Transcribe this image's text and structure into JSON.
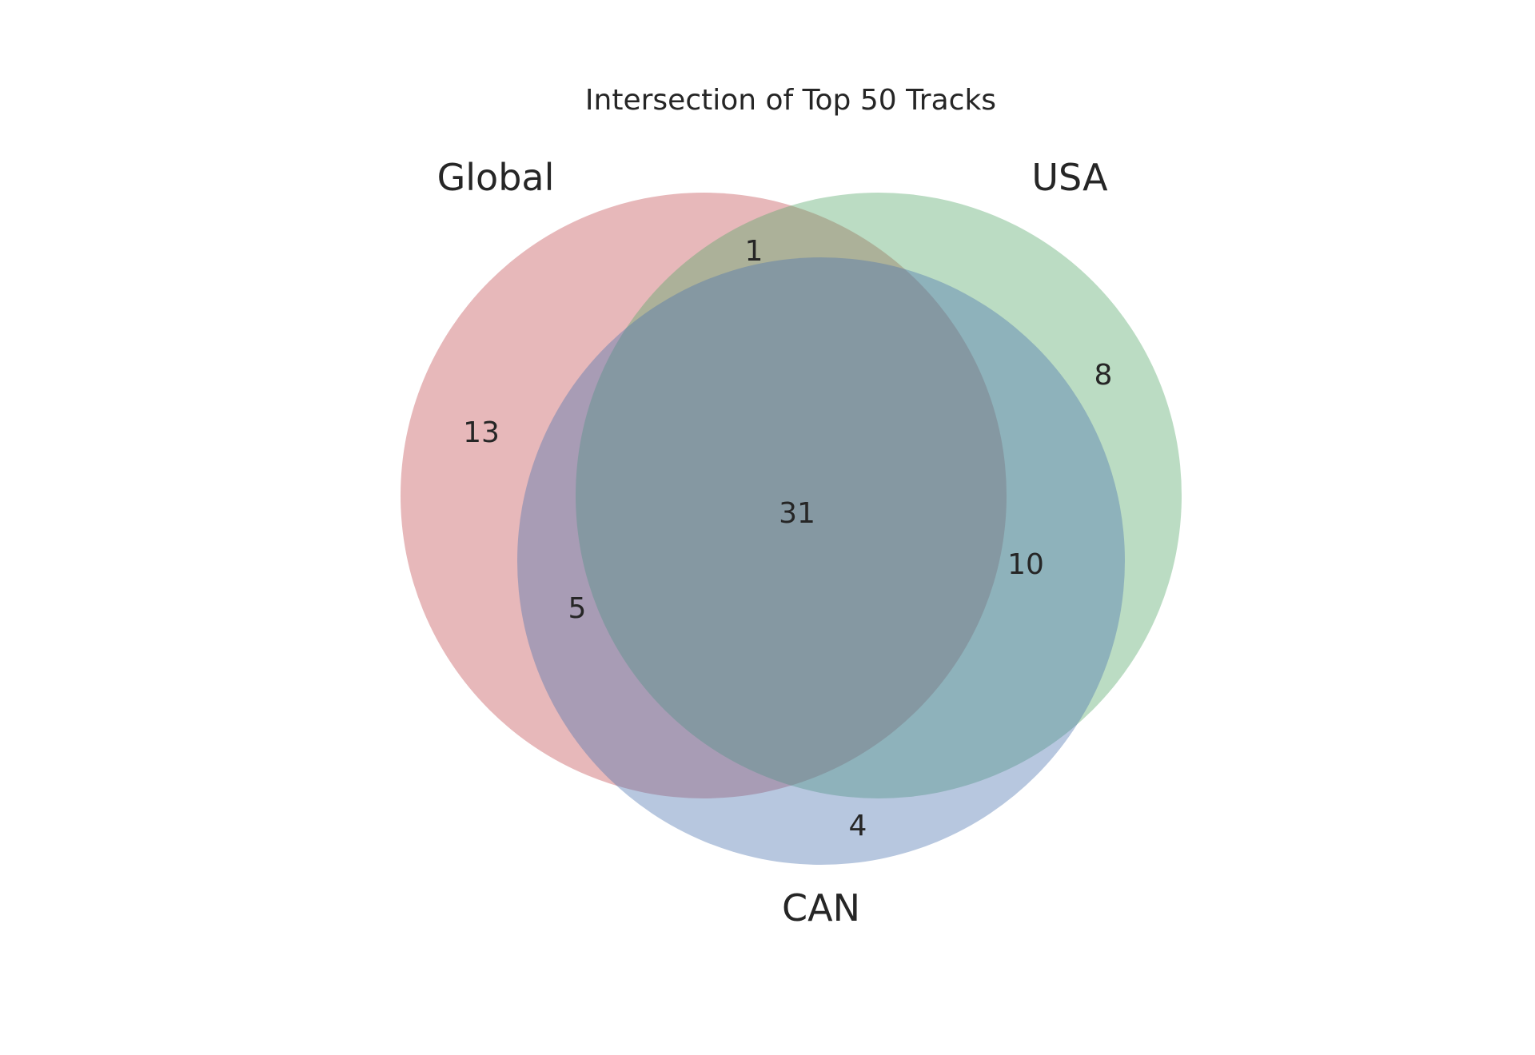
{
  "chart_data": {
    "type": "venn",
    "title": "Intersection of Top 50 Tracks",
    "sets": [
      {
        "name": "Global",
        "color": "#c44e52"
      },
      {
        "name": "USA",
        "color": "#55a868"
      },
      {
        "name": "CAN",
        "color": "#4c72b0"
      }
    ],
    "regions": [
      {
        "sets": [
          "Global"
        ],
        "value": 13
      },
      {
        "sets": [
          "USA"
        ],
        "value": 8
      },
      {
        "sets": [
          "CAN"
        ],
        "value": 4
      },
      {
        "sets": [
          "Global",
          "USA"
        ],
        "value": 1
      },
      {
        "sets": [
          "Global",
          "CAN"
        ],
        "value": 5
      },
      {
        "sets": [
          "USA",
          "CAN"
        ],
        "value": 10
      },
      {
        "sets": [
          "Global",
          "USA",
          "CAN"
        ],
        "value": 31
      }
    ],
    "fill_opacity": 0.4
  }
}
